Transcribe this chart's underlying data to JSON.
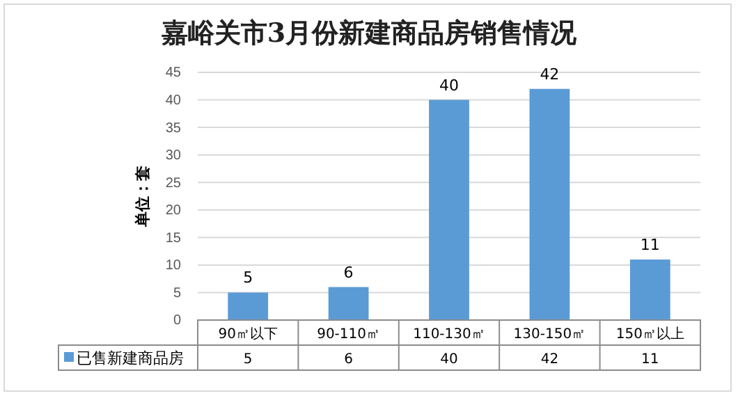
{
  "chart_data": {
    "type": "bar",
    "title": "嘉峪关市3月份新建商品房销售情况",
    "ylabel": "单位：套",
    "categories": [
      "90㎡以下",
      "90-110㎡",
      "110-130㎡",
      "130-150㎡",
      "150㎡以上"
    ],
    "series": [
      {
        "name": "已售新建商品房",
        "color": "#5b9bd5",
        "values": [
          5,
          6,
          40,
          42,
          11
        ]
      }
    ],
    "annotations": [
      {
        "text": "5",
        "x": "90㎡以下",
        "y": 5
      },
      {
        "text": "6",
        "x": "90-110㎡",
        "y": 6
      },
      {
        "text": "40",
        "x": "110-130㎡",
        "y": 40
      },
      {
        "text": "42",
        "x": "130-150㎡",
        "y": 42
      },
      {
        "text": "11",
        "x": "150㎡以上",
        "y": 11
      }
    ],
    "ylim": [
      0,
      45
    ],
    "yticks": [
      0,
      5,
      10,
      15,
      20,
      25,
      30,
      35,
      40,
      45
    ],
    "grid": "y",
    "legend": "bottom",
    "data_labels": true
  }
}
